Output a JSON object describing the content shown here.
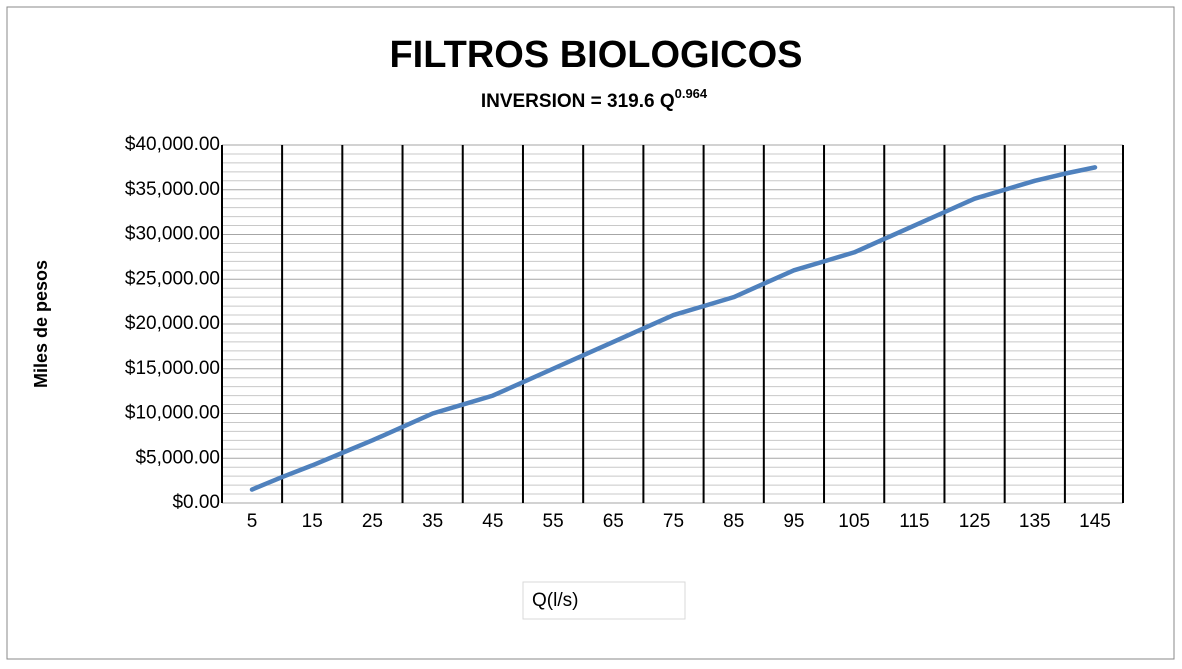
{
  "chart_data": {
    "type": "line",
    "title": "FILTROS BIOLOGICOS",
    "subtitle": "INVERSION = 319.6 Q",
    "subtitle_exponent": "0.964",
    "x_label": "Q(l/s)",
    "y_label": "Miles de pesos",
    "categories": [
      "5",
      null,
      "15",
      null,
      "25",
      null,
      "35",
      null,
      "45",
      null,
      "55",
      null,
      "65",
      null,
      "75",
      null,
      "85",
      null,
      "95",
      null,
      "105",
      null,
      "115",
      null,
      "125",
      null,
      "135",
      null,
      "145"
    ],
    "series": [
      {
        "name": "INVERSION",
        "color": "#4f81bd",
        "values": [
          1500,
          2900,
          4200,
          5600,
          7000,
          8500,
          10000,
          11000,
          12000,
          13500,
          15000,
          16500,
          18000,
          19500,
          21000,
          22000,
          23000,
          24500,
          26000,
          27000,
          28000,
          29500,
          31000,
          32500,
          34000,
          35000,
          36000,
          36800,
          37500
        ]
      }
    ],
    "ylim": [
      0,
      40000
    ],
    "yticks": [
      {
        "value": 0,
        "label": "$0.00"
      },
      {
        "value": 5000,
        "label": "$5,000.00"
      },
      {
        "value": 10000,
        "label": "$10,000.00"
      },
      {
        "value": 15000,
        "label": "$15,000.00"
      },
      {
        "value": 20000,
        "label": "$20,000.00"
      },
      {
        "value": 25000,
        "label": "$25,000.00"
      },
      {
        "value": 30000,
        "label": "$30,000.00"
      },
      {
        "value": 35000,
        "label": "$35,000.00"
      },
      {
        "value": 40000,
        "label": "$40,000.00"
      }
    ],
    "grid": true
  }
}
